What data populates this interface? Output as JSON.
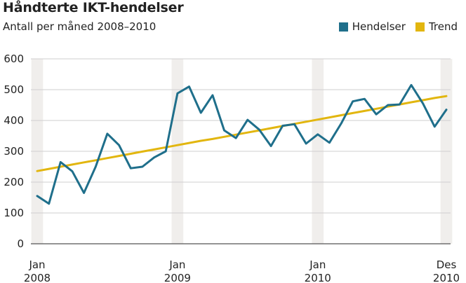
{
  "chart_data": {
    "type": "line",
    "title": "Håndterte IKT-hendelser",
    "subtitle": "Antall per måned 2008–2010",
    "ylim": [
      0,
      600
    ],
    "y_ticks": [
      "0",
      "100",
      "200",
      "300",
      "400",
      "500",
      "600"
    ],
    "x_ticks": [
      {
        "month_index": 0,
        "line1": "Jan",
        "line2": "2008"
      },
      {
        "month_index": 12,
        "line1": "Jan",
        "line2": "2009"
      },
      {
        "month_index": 24,
        "line1": "Jan",
        "line2": "2010"
      },
      {
        "month_index": 35,
        "line1": "Des",
        "line2": "2010"
      }
    ],
    "x_start": "Jan 2008",
    "x_end": "Des 2010",
    "shaded_months": [
      0,
      12,
      24,
      35
    ],
    "grid": true,
    "legend_position": "top-right",
    "series": [
      {
        "name": "Hendelser",
        "color": "#1f6f8b",
        "values": [
          155,
          130,
          265,
          235,
          165,
          250,
          357,
          320,
          245,
          250,
          280,
          300,
          488,
          510,
          425,
          482,
          368,
          343,
          402,
          370,
          317,
          383,
          388,
          325,
          355,
          328,
          390,
          462,
          470,
          420,
          450,
          452,
          515,
          455,
          380,
          435
        ]
      },
      {
        "name": "Trend",
        "color": "#e2b60f",
        "values": [
          236,
          243,
          250,
          257,
          264,
          271,
          278,
          285,
          292,
          299,
          306,
          313,
          320,
          327,
          334,
          340,
          347,
          354,
          361,
          368,
          375,
          382,
          389,
          396,
          403,
          410,
          417,
          424,
          431,
          438,
          445,
          452,
          459,
          466,
          473,
          479
        ]
      }
    ]
  }
}
